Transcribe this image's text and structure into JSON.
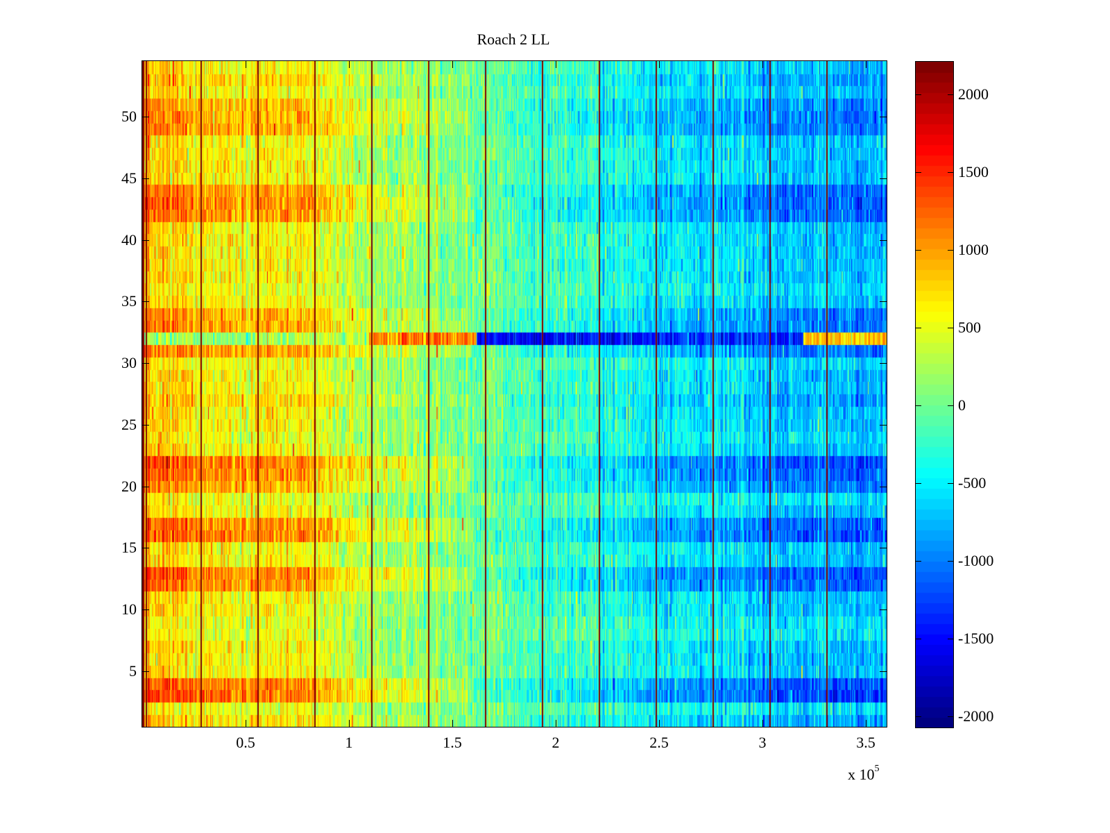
{
  "chart_data": {
    "type": "heatmap",
    "title": "Roach 2 LL",
    "xlabel": "",
    "ylabel": "",
    "x_multiplier_label": "x 10",
    "x_multiplier_exponent": "5",
    "xlim": [
      0,
      360000
    ],
    "ylim": [
      0.5,
      54.5
    ],
    "rows": 54,
    "columns": 720,
    "x_ticks": [
      50000,
      100000,
      150000,
      200000,
      250000,
      300000,
      350000
    ],
    "x_tick_labels": [
      "0.5",
      "1",
      "1.5",
      "2",
      "2.5",
      "3",
      "3.5"
    ],
    "y_ticks": [
      5,
      10,
      15,
      20,
      25,
      30,
      35,
      40,
      45,
      50
    ],
    "y_tick_labels": [
      "5",
      "10",
      "15",
      "20",
      "25",
      "30",
      "35",
      "40",
      "45",
      "50"
    ],
    "colormap": "jet",
    "color_limits": [
      -2070,
      2210
    ],
    "colorbar_ticks": [
      2000,
      1500,
      1000,
      500,
      0,
      -500,
      -1000,
      -1500,
      -2000
    ],
    "colorbar_tick_labels": [
      "2000",
      "1500",
      "1000",
      "500",
      "0",
      "-500",
      "-1000",
      "-1500",
      "-2000"
    ],
    "column_trend": {
      "x": [
        0,
        30000,
        60000,
        85000,
        100000,
        150000,
        200000,
        250000,
        300000,
        360000
      ],
      "mean": [
        750,
        650,
        600,
        500,
        300,
        50,
        -200,
        -450,
        -650,
        -750
      ]
    },
    "row_effects": {
      "rows": [
        1,
        2,
        3,
        4,
        8,
        9,
        12,
        13,
        16,
        17,
        19,
        20,
        21,
        22,
        24,
        27,
        30,
        31,
        33,
        34,
        36,
        42,
        43,
        44,
        49,
        50,
        51,
        53
      ],
      "effect": [
        0.3,
        -0.4,
        1.6,
        1.4,
        -0.5,
        -0.4,
        1.2,
        1.4,
        1.4,
        1.2,
        -0.4,
        0.8,
        1.2,
        1.5,
        -0.3,
        0.4,
        -0.3,
        1.0,
        0.9,
        0.8,
        -0.3,
        1.1,
        1.2,
        1.1,
        0.9,
        0.9,
        0.7,
        0.4
      ]
    },
    "special_row": {
      "row": 32,
      "segments": [
        {
          "x0": 0,
          "x1": 85000,
          "mean": 200
        },
        {
          "x0": 85000,
          "x1": 110000,
          "mean": 300
        },
        {
          "x0": 110000,
          "x1": 162000,
          "mean": 1100
        },
        {
          "x0": 162000,
          "x1": 250000,
          "mean": -1500
        },
        {
          "x0": 250000,
          "x1": 320000,
          "mean": -1300
        },
        {
          "x0": 320000,
          "x1": 360000,
          "mean": 800
        }
      ]
    },
    "spike_columns": {
      "x": [
        2000,
        28500,
        56000,
        83500,
        111000,
        138500,
        166000,
        193500,
        221000,
        248500,
        276000,
        303500,
        331000
      ],
      "value": 2200
    },
    "noise_amplitude": 420
  }
}
